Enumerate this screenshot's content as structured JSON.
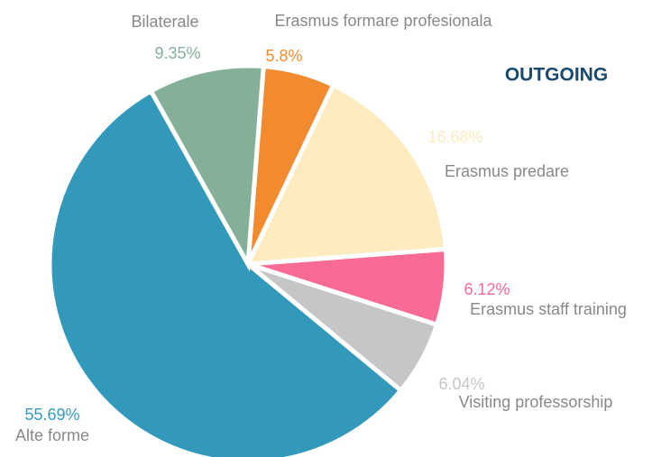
{
  "chart_data": {
    "type": "pie",
    "title": "OUTGOING",
    "categories": [
      "Erasmus formare profesionala",
      "Erasmus predare",
      "Erasmus staff training",
      "Visiting professorship",
      "Alte forme",
      "Bilaterale"
    ],
    "values": [
      5.8,
      16.68,
      6.12,
      6.04,
      55.69,
      9.35
    ],
    "value_labels": [
      "5.8%",
      "16.68%",
      "6.12%",
      "6.04%",
      "55.69%",
      "9.35%"
    ],
    "colors": [
      "#f28a30",
      "#feebc0",
      "#f76b95",
      "#c5c6c8",
      "#3399bb",
      "#84b09a"
    ]
  }
}
